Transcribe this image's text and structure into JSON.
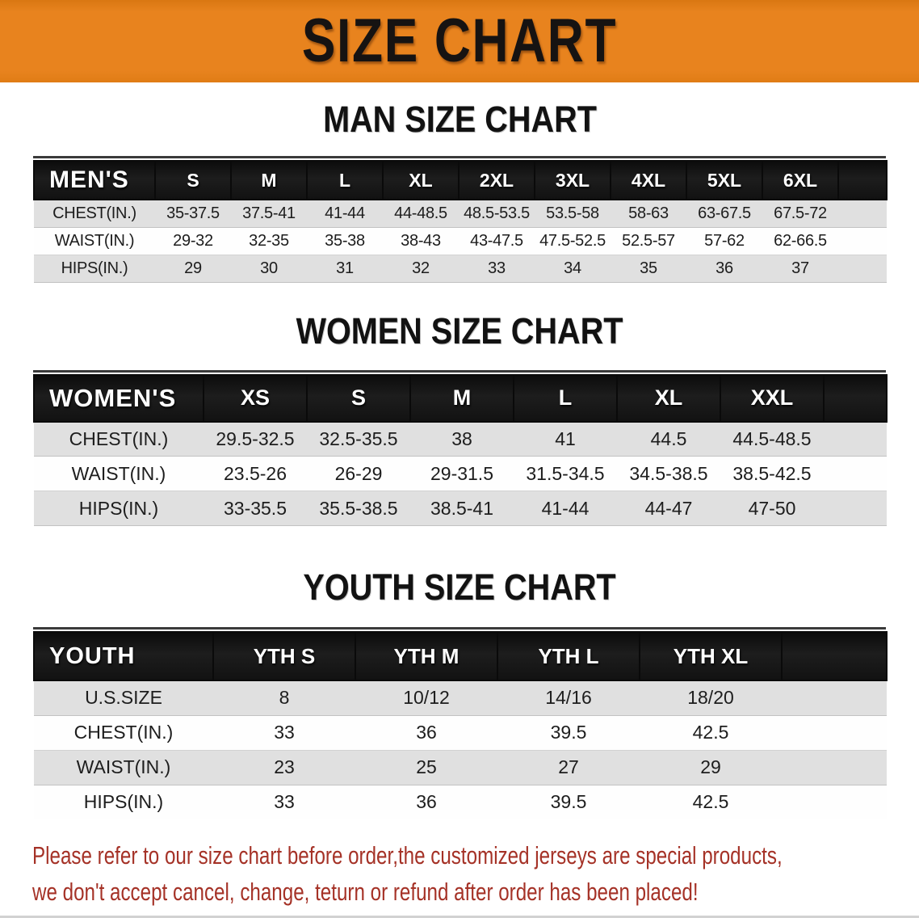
{
  "banner": {
    "title": "SIZE CHART"
  },
  "sections": [
    {
      "title": "MAN SIZE CHART",
      "header_label": "MEN'S",
      "columns": [
        "S",
        "M",
        "L",
        "XL",
        "2XL",
        "3XL",
        "4XL",
        "5XL",
        "6XL"
      ],
      "rows": [
        {
          "label": "CHEST(IN.)",
          "values": [
            "35-37.5",
            "37.5-41",
            "41-44",
            "44-48.5",
            "48.5-53.5",
            "53.5-58",
            "58-63",
            "63-67.5",
            "67.5-72"
          ]
        },
        {
          "label": "WAIST(IN.)",
          "values": [
            "29-32",
            "32-35",
            "35-38",
            "38-43",
            "43-47.5",
            "47.5-52.5",
            "52.5-57",
            "57-62",
            "62-66.5"
          ]
        },
        {
          "label": "HIPS(IN.)",
          "values": [
            "29",
            "30",
            "31",
            "32",
            "33",
            "34",
            "35",
            "36",
            "37"
          ]
        }
      ]
    },
    {
      "title": "WOMEN SIZE CHART",
      "header_label": "WOMEN'S",
      "columns": [
        "XS",
        "S",
        "M",
        "L",
        "XL",
        "XXL"
      ],
      "rows": [
        {
          "label": "CHEST(IN.)",
          "values": [
            "29.5-32.5",
            "32.5-35.5",
            "38",
            "41",
            "44.5",
            "44.5-48.5"
          ]
        },
        {
          "label": "WAIST(IN.)",
          "values": [
            "23.5-26",
            "26-29",
            "29-31.5",
            "31.5-34.5",
            "34.5-38.5",
            "38.5-42.5"
          ]
        },
        {
          "label": "HIPS(IN.)",
          "values": [
            "33-35.5",
            "35.5-38.5",
            "38.5-41",
            "41-44",
            "44-47",
            "47-50"
          ]
        }
      ]
    },
    {
      "title": "YOUTH SIZE CHART",
      "header_label": "YOUTH",
      "columns": [
        "YTH S",
        "YTH M",
        "YTH L",
        "YTH XL"
      ],
      "rows": [
        {
          "label": "U.S.SIZE",
          "values": [
            "8",
            "10/12",
            "14/16",
            "18/20"
          ]
        },
        {
          "label": "CHEST(IN.)",
          "values": [
            "33",
            "36",
            "39.5",
            "42.5"
          ]
        },
        {
          "label": "WAIST(IN.)",
          "values": [
            "23",
            "25",
            "27",
            "29"
          ]
        },
        {
          "label": "HIPS(IN.)",
          "values": [
            "33",
            "36",
            "39.5",
            "42.5"
          ]
        }
      ]
    }
  ],
  "footer": {
    "line1": "Please refer to our size chart before order,the customized jerseys are special products,",
    "line2": "we don't accept cancel, change, teturn or refund after order has been placed!"
  },
  "colors": {
    "banner_orange": "#E8831E",
    "table_header_black": "#161616",
    "row_gray": "#E0E0E0",
    "row_white": "#FEFEFE",
    "note_red": "#A53227"
  }
}
